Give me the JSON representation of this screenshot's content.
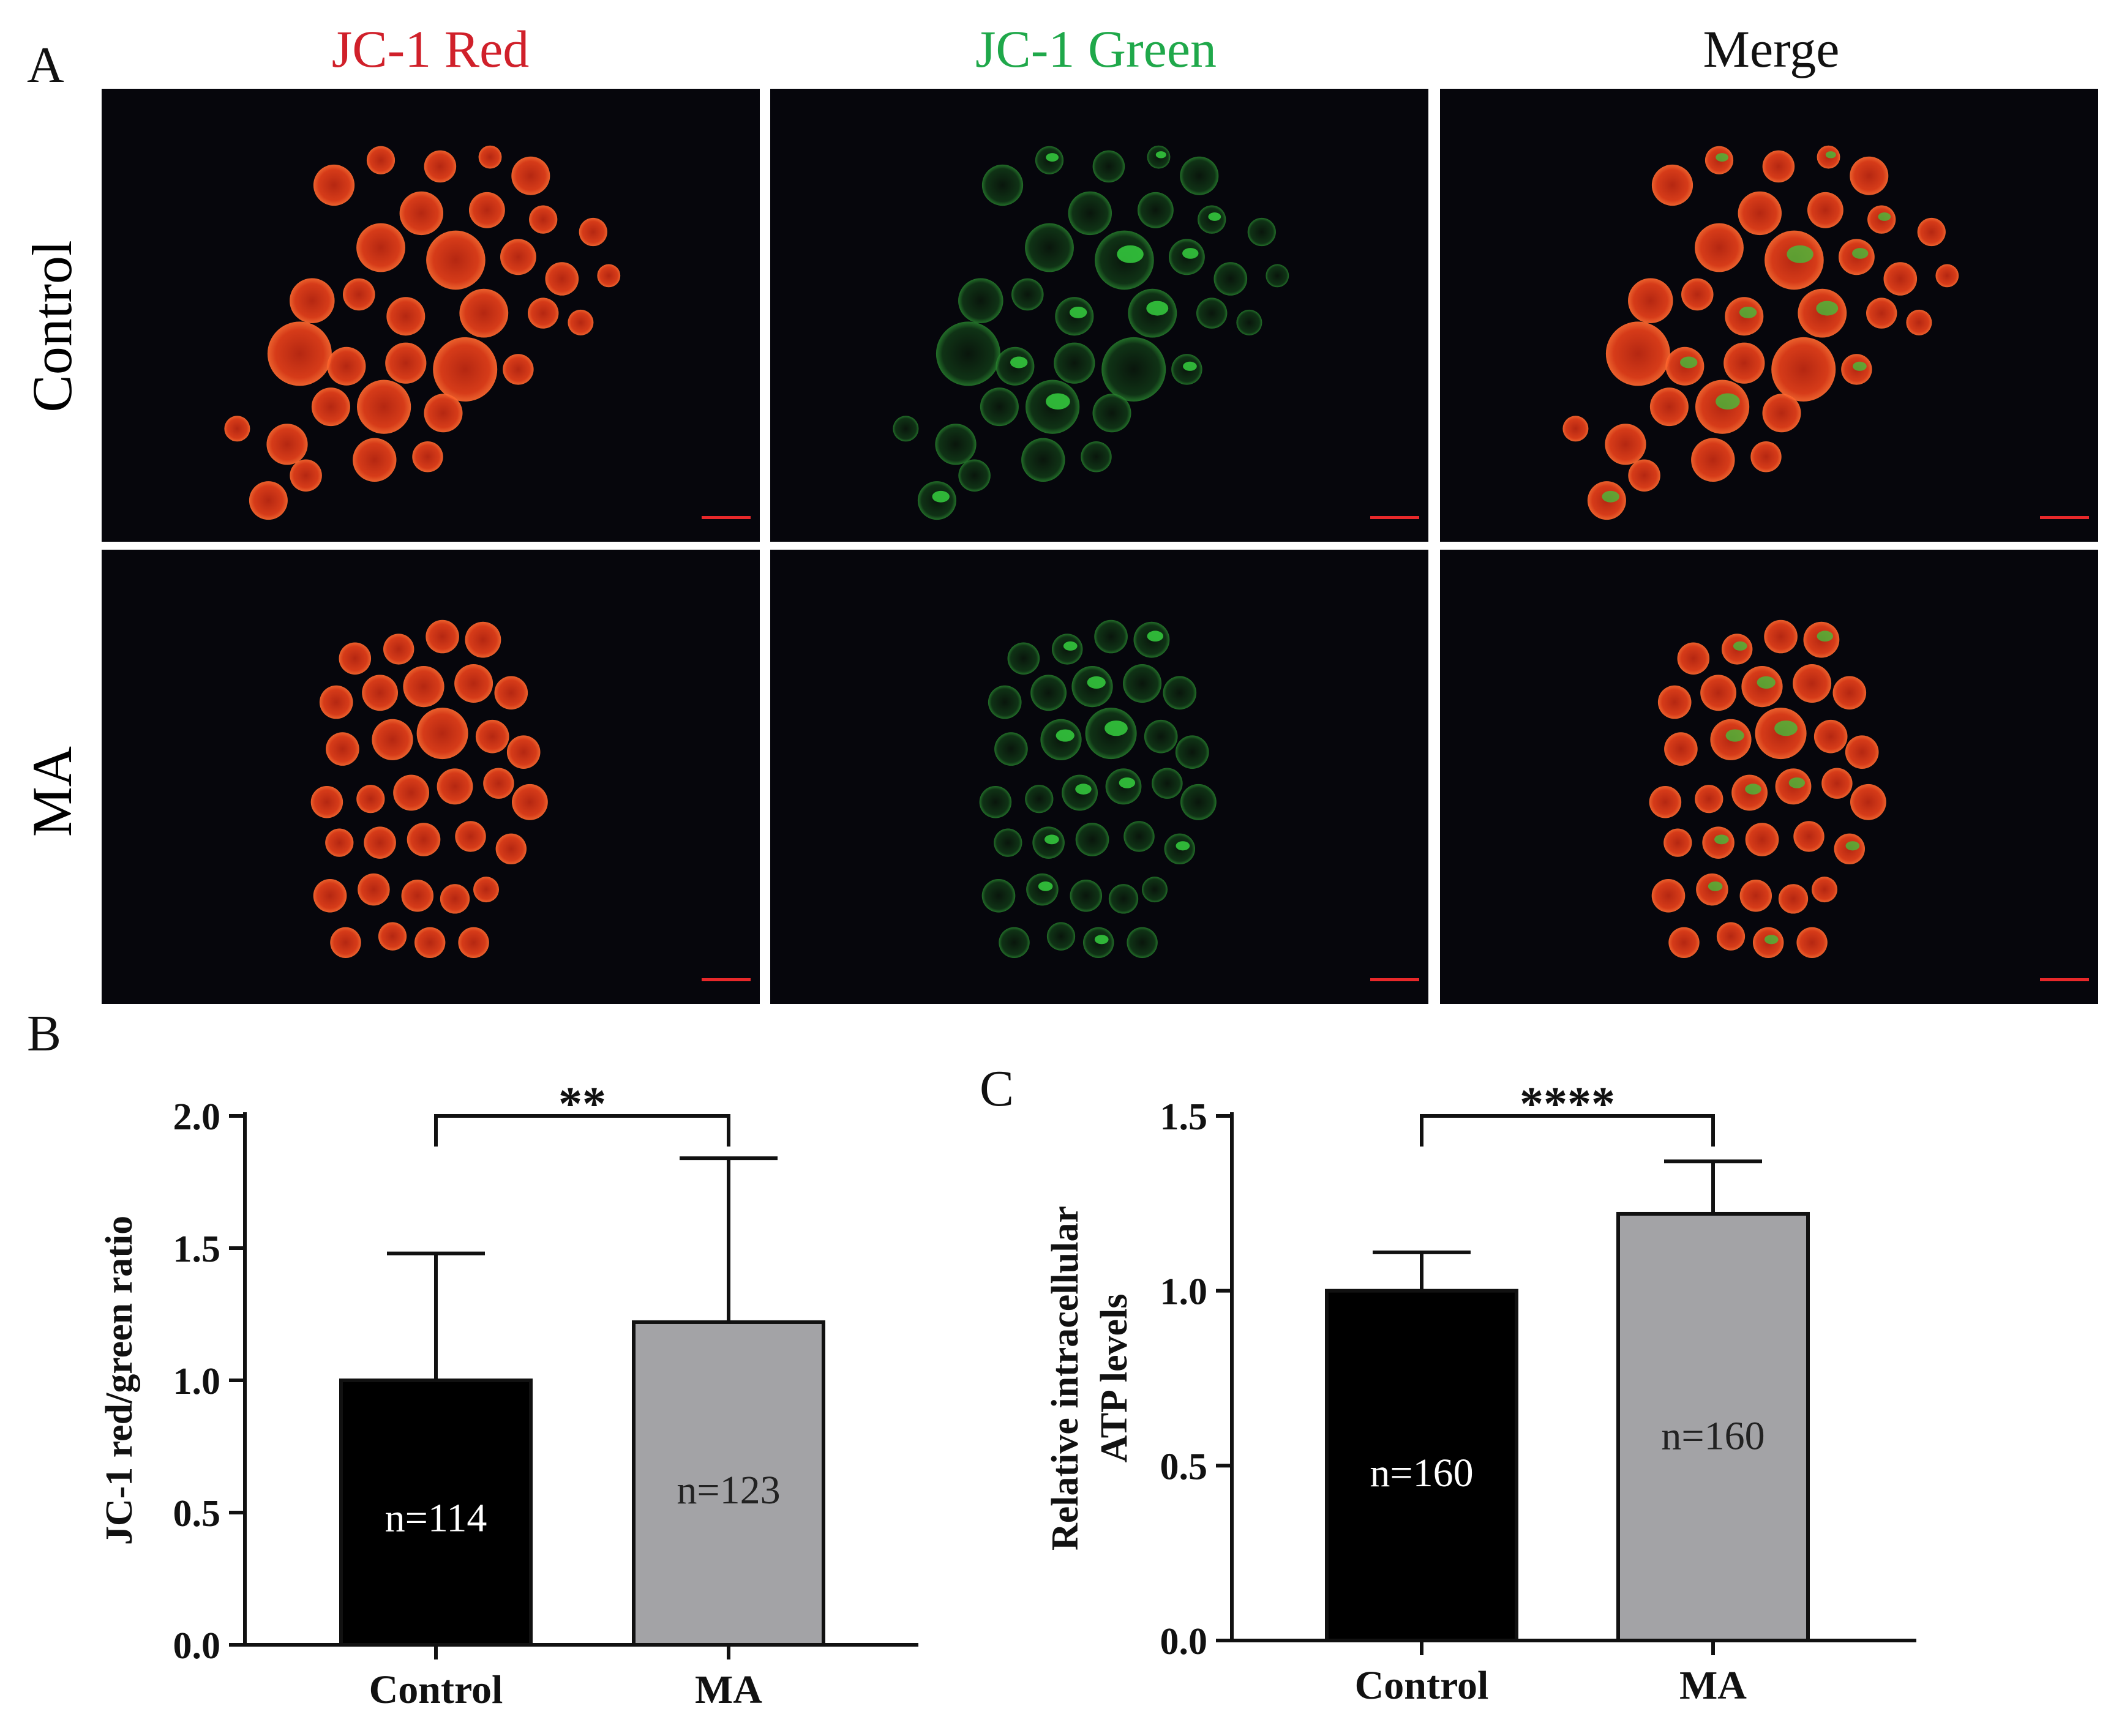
{
  "panels": {
    "a_label": "A",
    "b_label": "B",
    "c_label": "C"
  },
  "panel_a": {
    "columns": [
      {
        "label": "JC-1 Red",
        "color": "#d0202a"
      },
      {
        "label": "JC-1 Green",
        "color": "#1fa84a"
      },
      {
        "label": "Merge",
        "color": "#111111"
      }
    ],
    "rows": [
      {
        "label": "Control"
      },
      {
        "label": "MA"
      }
    ],
    "colors": {
      "red_channel": "#ff3a10",
      "green_channel": "#2fbf3a",
      "background": "#06060c",
      "scale_bar": "#e8282a"
    }
  },
  "chart_data": [
    {
      "type": "bar",
      "panel": "B",
      "categories": [
        "Control",
        "MA"
      ],
      "values": [
        1.0,
        1.22
      ],
      "error_upper": [
        1.48,
        1.84
      ],
      "annotations": [
        "n=114",
        "n=123"
      ],
      "bar_colors": [
        "#000000",
        "#a3a3a6"
      ],
      "ylabel": "JC-1 red/green ratio",
      "xlabel": "",
      "ylim": [
        0,
        2.0
      ],
      "yticks": [
        "0.0",
        "0.5",
        "1.0",
        "1.5",
        "2.0"
      ],
      "significance": "**"
    },
    {
      "type": "bar",
      "panel": "C",
      "categories": [
        "Control",
        "MA"
      ],
      "values": [
        1.0,
        1.22
      ],
      "error_upper": [
        1.11,
        1.37
      ],
      "annotations": [
        "n=160",
        "n=160"
      ],
      "bar_colors": [
        "#000000",
        "#a3a3a6"
      ],
      "ylabel": "Relative intracellular ATP levels",
      "ylabel_lines": [
        "Relative intracellular",
        "ATP levels"
      ],
      "xlabel": "",
      "ylim": [
        0,
        1.5
      ],
      "yticks": [
        "0.0",
        "0.5",
        "1.0",
        "1.5"
      ],
      "significance": "****"
    }
  ]
}
